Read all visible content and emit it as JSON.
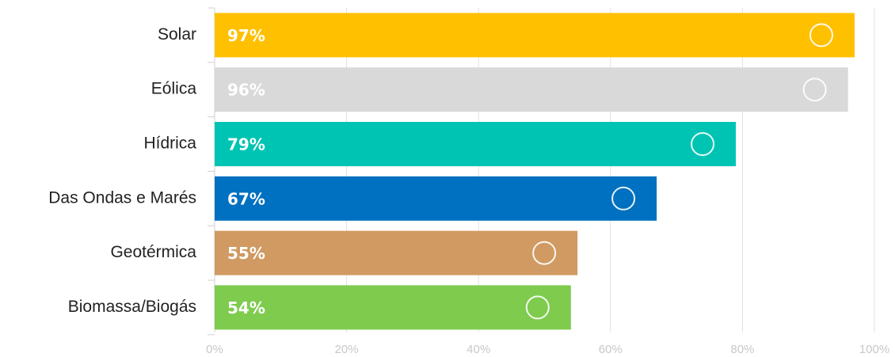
{
  "chart_data": {
    "type": "barh",
    "categories": [
      "Solar",
      "Eólica",
      "Hídrica",
      "Das Ondas e Marés",
      "Geotérmica",
      "Biomassa/Biogás"
    ],
    "values": [
      97,
      96,
      79,
      67,
      55,
      54
    ],
    "value_labels": [
      "97%",
      "96%",
      "79%",
      "67%",
      "55%",
      "54%"
    ],
    "colors": [
      "#ffc000",
      "#d9d9d9",
      "#00c4b3",
      "#0070c0",
      "#d09a62",
      "#7ecb4e"
    ],
    "xlim": [
      0,
      100
    ],
    "xticks": [
      {
        "value": 0,
        "label": "0%"
      },
      {
        "value": 20,
        "label": "20%"
      },
      {
        "value": 40,
        "label": "40%"
      },
      {
        "value": 60,
        "label": "60%"
      },
      {
        "value": 80,
        "label": "80%"
      },
      {
        "value": 100,
        "label": "100%"
      }
    ],
    "grid": true
  }
}
